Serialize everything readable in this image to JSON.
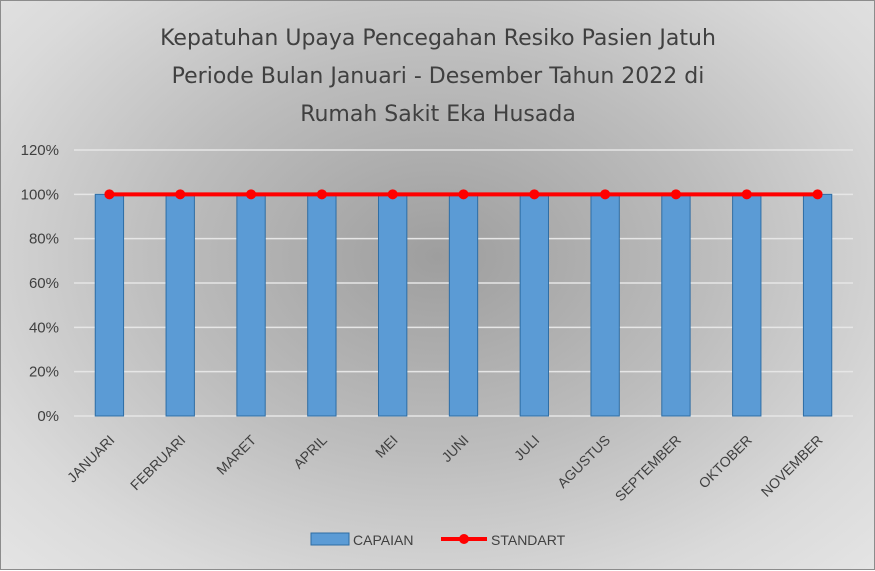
{
  "chart_data": {
    "type": "bar",
    "title_lines": [
      "Kepatuhan Upaya Pencegahan Resiko Pasien Jatuh",
      "Periode Bulan Januari - Desember Tahun 2022 di",
      "Rumah Sakit Eka Husada"
    ],
    "categories": [
      "JANUARI",
      "FEBRUARI",
      "MARET",
      "APRIL",
      "MEI",
      "JUNI",
      "JULI",
      "AGUSTUS",
      "SEPTEMBER",
      "OKTOBER",
      "NOVEMBER"
    ],
    "series": [
      {
        "name": "CAPAIAN",
        "kind": "bar",
        "values": [
          1,
          1,
          1,
          1,
          1,
          1,
          1,
          1,
          1,
          1,
          1
        ],
        "color": "#5b9bd5",
        "edge_color": "#2e6da4"
      },
      {
        "name": "STANDART",
        "kind": "line",
        "values": [
          1,
          1,
          1,
          1,
          1,
          1,
          1,
          1,
          1,
          1,
          1
        ],
        "color": "#ff0000"
      }
    ],
    "ylim": [
      0,
      1.2
    ],
    "yticks": [
      0,
      0.2,
      0.4,
      0.6,
      0.8,
      1.0,
      1.2
    ],
    "ytick_labels": [
      "0%",
      "20%",
      "40%",
      "60%",
      "80%",
      "100%",
      "120%"
    ],
    "grid": true,
    "gridline_color": "#e6e6e6",
    "legend_position": "bottom"
  }
}
